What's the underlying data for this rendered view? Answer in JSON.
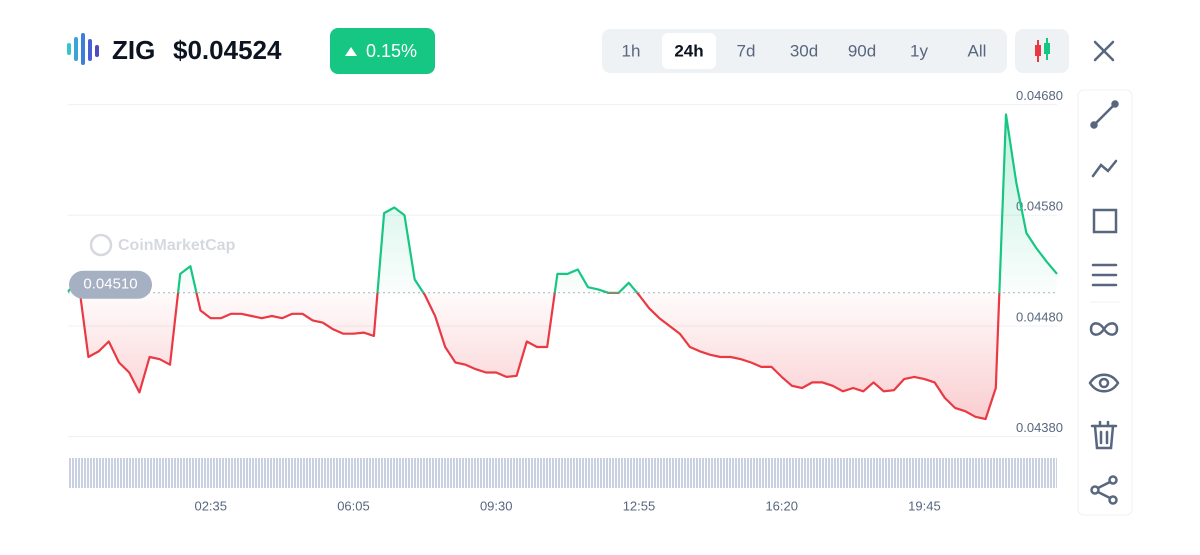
{
  "header": {
    "symbol": "ZIG",
    "price": "$0.04524",
    "change": "0.15%"
  },
  "timeframes": [
    "1h",
    "24h",
    "7d",
    "30d",
    "90d",
    "1y",
    "All"
  ],
  "selected_timeframe": "24h",
  "watermark": "CoinMarketCap",
  "chart_data": {
    "type": "line",
    "categories": [
      null,
      null,
      null,
      null,
      null,
      null,
      null,
      null,
      null,
      null,
      null,
      null,
      null,
      null,
      "02:35",
      null,
      null,
      null,
      null,
      null,
      null,
      null,
      null,
      null,
      null,
      null,
      null,
      null,
      "06:05",
      null,
      null,
      null,
      null,
      null,
      null,
      null,
      null,
      null,
      null,
      null,
      null,
      null,
      "09:30",
      null,
      null,
      null,
      null,
      null,
      null,
      null,
      null,
      null,
      null,
      null,
      null,
      null,
      "12:55",
      null,
      null,
      null,
      null,
      null,
      null,
      null,
      null,
      null,
      null,
      null,
      null,
      null,
      "16:20",
      null,
      null,
      null,
      null,
      null,
      null,
      null,
      null,
      null,
      null,
      null,
      null,
      null,
      "19:45",
      null,
      null,
      null,
      null,
      null,
      null,
      null,
      null,
      null,
      null,
      null,
      null,
      null
    ],
    "values": [
      0.04511,
      0.04522,
      0.04452,
      0.04457,
      0.04466,
      0.04447,
      0.04438,
      0.0442,
      0.04452,
      0.0445,
      0.04445,
      0.04527,
      0.04534,
      0.04494,
      0.04487,
      0.04487,
      0.04491,
      0.04491,
      0.04489,
      0.04487,
      0.04489,
      0.04487,
      0.04491,
      0.04491,
      0.04485,
      0.04483,
      0.04477,
      0.04473,
      0.04473,
      0.04474,
      0.04471,
      0.04582,
      0.04587,
      0.0458,
      0.04522,
      0.04508,
      0.04489,
      0.04461,
      0.04447,
      0.04445,
      0.04441,
      0.04438,
      0.04438,
      0.04434,
      0.04435,
      0.04466,
      0.04461,
      0.04461,
      0.04527,
      0.04527,
      0.04531,
      0.04515,
      0.04513,
      0.0451,
      0.0451,
      0.04519,
      0.04508,
      0.04496,
      0.04487,
      0.0448,
      0.04473,
      0.04461,
      0.04457,
      0.04454,
      0.04452,
      0.04452,
      0.0445,
      0.04447,
      0.04443,
      0.04443,
      0.04434,
      0.04426,
      0.04424,
      0.04429,
      0.04429,
      0.04426,
      0.04421,
      0.04424,
      0.04421,
      0.04429,
      0.04421,
      0.04422,
      0.04432,
      0.04434,
      0.04432,
      0.04429,
      0.04415,
      0.04406,
      0.04403,
      0.04398,
      0.04396,
      0.04424,
      0.04671,
      0.0461,
      0.04564,
      0.0455,
      0.04538,
      0.04527
    ],
    "color_above": "#16c784",
    "color_below": "#ea3943",
    "reference_line": {
      "value": 0.0451,
      "label": "0.04510"
    },
    "ylim": [
      0.0437,
      0.0469
    ],
    "yticks": [
      {
        "value": 0.0438,
        "label": "0.04380"
      },
      {
        "value": 0.0448,
        "label": "0.04480"
      },
      {
        "value": 0.0458,
        "label": "0.04580"
      },
      {
        "value": 0.0468,
        "label": "0.04680"
      }
    ],
    "grid": true
  }
}
